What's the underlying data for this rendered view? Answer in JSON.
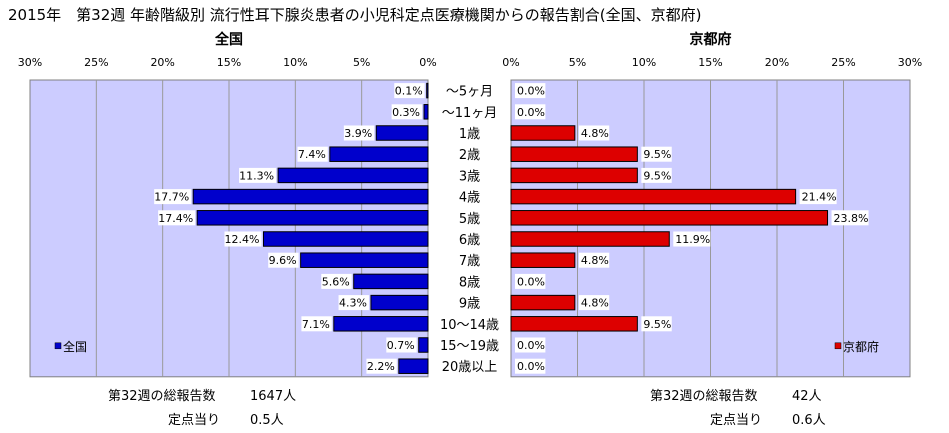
{
  "chart_data": {
    "type": "bar",
    "orientation": "horizontal",
    "layout": "population-pyramid",
    "title": "2015年　第32週 年齢階級別 流行性耳下腺炎患者の小児科定点医療機関からの報告割合(全国、京都府)",
    "categories": [
      "～5ヶ月",
      "～11ヶ月",
      "1歳",
      "2歳",
      "3歳",
      "4歳",
      "5歳",
      "6歳",
      "7歳",
      "8歳",
      "9歳",
      "10～14歳",
      "15～19歳",
      "20歳以上"
    ],
    "x_ticks": [
      "0%",
      "5%",
      "10%",
      "15%",
      "20%",
      "25%",
      "30%"
    ],
    "xlim": [
      0,
      30
    ],
    "grid": true,
    "series": [
      {
        "name": "全国",
        "panel_title": "全国",
        "side": "left",
        "color": "#0000cc",
        "values": [
          0.1,
          0.3,
          3.9,
          7.4,
          11.3,
          17.7,
          17.4,
          12.4,
          9.6,
          5.6,
          4.3,
          7.1,
          0.7,
          2.2
        ],
        "legend_position": "bottom-left",
        "summary": [
          {
            "label": "第32週の総報告数",
            "value": "1647人"
          },
          {
            "label": "定点当り",
            "value": "0.5人"
          }
        ]
      },
      {
        "name": "京都府",
        "panel_title": "京都府",
        "side": "right",
        "color": "#dd0000",
        "values": [
          0.0,
          0.0,
          4.8,
          9.5,
          9.5,
          21.4,
          23.8,
          11.9,
          4.8,
          0.0,
          4.8,
          9.5,
          0.0,
          0.0
        ],
        "legend_position": "bottom-right",
        "summary": [
          {
            "label": "第32週の総報告数",
            "value": "42人"
          },
          {
            "label": "定点当り",
            "value": "0.6人"
          }
        ]
      }
    ],
    "colors": {
      "plot_bg": "#ccccff",
      "grid": "#999999",
      "label_bg": "#ffffff"
    }
  }
}
